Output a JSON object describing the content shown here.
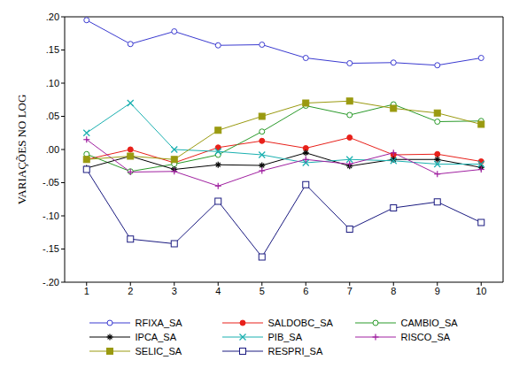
{
  "chart_data": {
    "type": "line",
    "y_label": "VARIAÇÕES NO LOG",
    "x": [
      1,
      2,
      3,
      4,
      5,
      6,
      7,
      8,
      9,
      10
    ],
    "xlim": [
      0.5,
      10.5
    ],
    "xticks": [
      1,
      2,
      3,
      4,
      5,
      6,
      7,
      8,
      9,
      10
    ],
    "ylim": [
      -0.2,
      0.2
    ],
    "yticks": [
      {
        "value": -0.2,
        "label": "-.20"
      },
      {
        "value": -0.15,
        "label": "-.15"
      },
      {
        "value": -0.1,
        "label": "-.10"
      },
      {
        "value": -0.05,
        "label": "-.05"
      },
      {
        "value": 0,
        "label": ".00"
      },
      {
        "value": 0.05,
        "label": ".05"
      },
      {
        "value": 0.1,
        "label": ".10"
      },
      {
        "value": 0.15,
        "label": ".15"
      },
      {
        "value": 0.2,
        "label": ".20"
      }
    ],
    "grid": false,
    "legend": "bottom",
    "series": [
      {
        "name": "RFIXA_SA",
        "color": "#3a3ad0",
        "marker": "circle",
        "values": [
          0.195,
          0.159,
          0.178,
          0.157,
          0.158,
          0.138,
          0.13,
          0.131,
          0.127,
          0.138
        ]
      },
      {
        "name": "SALDOBC_SA",
        "color": "#e8201a",
        "marker": "dot",
        "values": [
          -0.015,
          0.0,
          -0.02,
          0.003,
          0.013,
          0.002,
          0.018,
          -0.008,
          -0.007,
          -0.018
        ]
      },
      {
        "name": "CAMBIO_SA",
        "color": "#2a9a2a",
        "marker": "circle",
        "values": [
          -0.007,
          -0.033,
          -0.022,
          -0.008,
          0.027,
          0.066,
          0.052,
          0.068,
          0.042,
          0.043
        ]
      },
      {
        "name": "IPCA_SA",
        "color": "#000000",
        "marker": "asterisk",
        "values": [
          -0.028,
          -0.01,
          -0.03,
          -0.023,
          -0.024,
          -0.005,
          -0.025,
          -0.015,
          -0.015,
          -0.027
        ]
      },
      {
        "name": "PIB_SA",
        "color": "#1ab0b0",
        "marker": "x",
        "values": [
          0.025,
          0.07,
          0.0,
          -0.003,
          -0.008,
          -0.02,
          -0.015,
          -0.017,
          -0.022,
          -0.022
        ]
      },
      {
        "name": "RISCO_SA",
        "color": "#a020a0",
        "marker": "plus",
        "values": [
          0.015,
          -0.034,
          -0.033,
          -0.055,
          -0.032,
          -0.015,
          -0.022,
          -0.005,
          -0.037,
          -0.03
        ]
      },
      {
        "name": "SELIC_SA",
        "color": "#9a9a10",
        "marker": "square_filled",
        "values": [
          -0.015,
          -0.01,
          -0.015,
          0.029,
          0.05,
          0.07,
          0.073,
          0.062,
          0.055,
          0.038
        ]
      },
      {
        "name": "RESPRI_SA",
        "color": "#1a1a80",
        "marker": "square",
        "values": [
          -0.03,
          -0.135,
          -0.142,
          -0.078,
          -0.162,
          -0.053,
          -0.12,
          -0.088,
          -0.079,
          -0.11
        ]
      }
    ]
  }
}
